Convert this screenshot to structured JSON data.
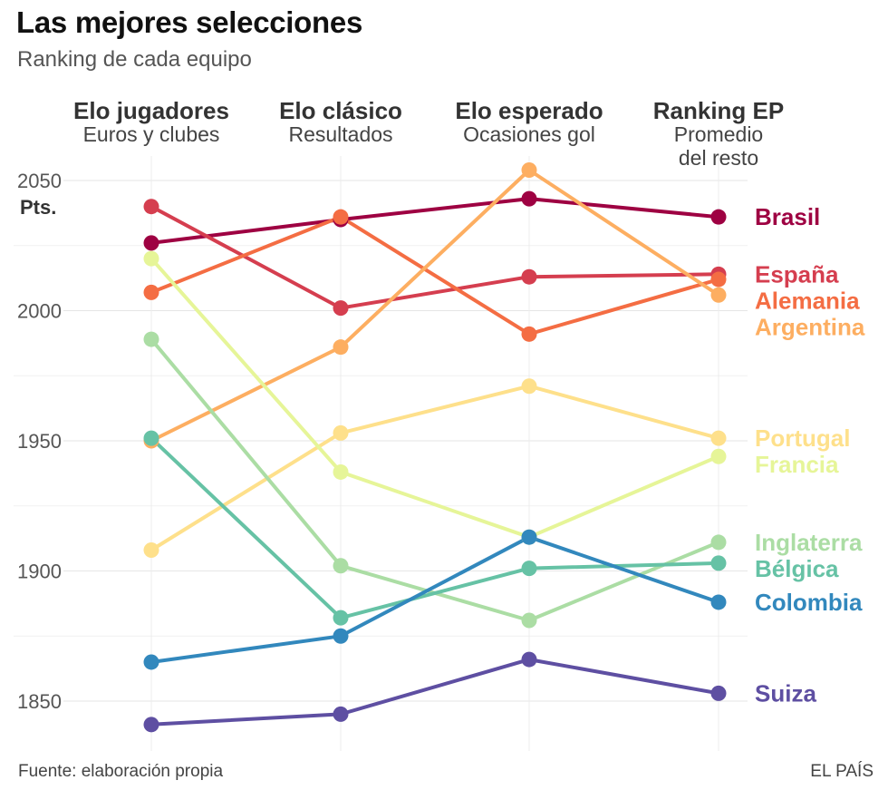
{
  "header": {
    "title": "Las mejores selecciones",
    "subtitle": "Ranking de cada equipo"
  },
  "footer": {
    "source": "Fuente: elaboración propia",
    "brand": "EL PAÍS"
  },
  "chart_data": {
    "type": "line",
    "title": "Las mejores selecciones",
    "subtitle": "Ranking de cada equipo",
    "ylabel": "Pts.",
    "ylim": [
      1840,
      2060
    ],
    "yticks": [
      1850,
      1900,
      1950,
      2000,
      2050
    ],
    "grid": true,
    "columns": [
      {
        "name": "Elo jugadores",
        "sub": [
          "Euros y clubes"
        ]
      },
      {
        "name": "Elo clásico",
        "sub": [
          "Resultados"
        ]
      },
      {
        "name": "Elo esperado",
        "sub": [
          "Ocasiones gol"
        ]
      },
      {
        "name": "Ranking EP",
        "sub": [
          "Promedio",
          "del resto"
        ]
      }
    ],
    "series": [
      {
        "name": "Brasil",
        "color": "#9e0142",
        "values": [
          2026,
          2035,
          2043,
          2036
        ]
      },
      {
        "name": "España",
        "color": "#d53e4f",
        "values": [
          2040,
          2001,
          2013,
          2014
        ]
      },
      {
        "name": "Alemania",
        "color": "#f46d43",
        "values": [
          2007,
          2036,
          1991,
          2012
        ]
      },
      {
        "name": "Argentina",
        "color": "#fdae61",
        "values": [
          1950,
          1986,
          2054,
          2006
        ]
      },
      {
        "name": "Portugal",
        "color": "#fee08b",
        "values": [
          1908,
          1953,
          1971,
          1951
        ]
      },
      {
        "name": "Francia",
        "color": "#e6f598",
        "values": [
          2020,
          1938,
          1913,
          1944
        ]
      },
      {
        "name": "Inglaterra",
        "color": "#abdda4",
        "values": [
          1989,
          1902,
          1881,
          1911
        ]
      },
      {
        "name": "Bélgica",
        "color": "#66c2a5",
        "values": [
          1951,
          1882,
          1901,
          1903
        ]
      },
      {
        "name": "Colombia",
        "color": "#3288bd",
        "values": [
          1865,
          1875,
          1913,
          1888
        ]
      },
      {
        "name": "Suiza",
        "color": "#5e4fa2",
        "values": [
          1841,
          1845,
          1866,
          1853
        ]
      }
    ]
  }
}
